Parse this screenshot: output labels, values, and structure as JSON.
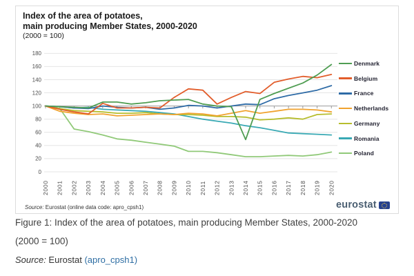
{
  "card": {
    "title_line1": "Index of the area of potatoes,",
    "title_line2": "main producing Member States, 2000-2020",
    "subtitle": "(2000 = 100)",
    "source_label": "Source:",
    "source_text": " Eurostat (online data code: apro_cpsh1)",
    "logo_text": "eurostat"
  },
  "chart_data": {
    "type": "line",
    "x": [
      2000,
      2001,
      2002,
      2003,
      2004,
      2005,
      2006,
      2007,
      2008,
      2009,
      2010,
      2011,
      2012,
      2013,
      2014,
      2015,
      2016,
      2017,
      2018,
      2019,
      2020
    ],
    "series": [
      {
        "name": "Denmark",
        "color": "#4f9d52",
        "values": [
          100,
          99,
          98,
          97,
          106,
          106,
          103,
          105,
          108,
          109,
          110,
          103,
          100,
          99,
          49,
          110,
          119,
          127,
          135,
          147,
          163
        ]
      },
      {
        "name": "Belgium",
        "color": "#e25d2b",
        "values": [
          100,
          95,
          91,
          88,
          104,
          97,
          97,
          98,
          97,
          113,
          126,
          124,
          103,
          113,
          122,
          119,
          136,
          141,
          145,
          143,
          148
        ]
      },
      {
        "name": "France",
        "color": "#2e6ba6",
        "values": [
          100,
          99,
          97,
          96,
          100,
          98,
          97,
          98,
          95,
          97,
          101,
          100,
          97,
          100,
          103,
          102,
          111,
          116,
          120,
          124,
          131
        ]
      },
      {
        "name": "Netherlands",
        "color": "#f0a22e",
        "values": [
          100,
          92,
          89,
          87,
          88,
          85,
          86,
          87,
          88,
          87,
          89,
          88,
          85,
          89,
          93,
          89,
          92,
          95,
          95,
          94,
          91
        ]
      },
      {
        "name": "Germany",
        "color": "#b6bd2d",
        "values": [
          100,
          96,
          93,
          92,
          91,
          89,
          89,
          90,
          88,
          87,
          87,
          86,
          84,
          84,
          83,
          79,
          80,
          82,
          80,
          87,
          88
        ]
      },
      {
        "name": "Romania",
        "color": "#39a9b4",
        "values": [
          100,
          99,
          97,
          98,
          95,
          94,
          93,
          92,
          90,
          88,
          84,
          80,
          77,
          74,
          70,
          67,
          63,
          59,
          58,
          57,
          56
        ]
      },
      {
        "name": "Poland",
        "color": "#90c978",
        "values": [
          100,
          96,
          65,
          61,
          56,
          50,
          48,
          45,
          42,
          39,
          31,
          31,
          29,
          26,
          23,
          23,
          24,
          25,
          24,
          26,
          30
        ]
      }
    ],
    "title": "Index of the area of potatoes, main producing Member States, 2000-2020",
    "subtitle": "(2000 = 100)",
    "xlabel": "",
    "ylabel": "",
    "ylim": [
      0,
      180
    ],
    "yticks": [
      0,
      20,
      40,
      60,
      80,
      100,
      120,
      140,
      160,
      180
    ],
    "baseline": 100,
    "grid": true,
    "legend_position": "right",
    "colors": {
      "grid": "#e4e4e4",
      "baseline_line": "#999999",
      "tick_text": "#4c4c4c"
    }
  },
  "caption": {
    "line1": "Figure 1: Index of the area of potatoes, main producing Member States, 2000-2020",
    "line2": "(2000 = 100)",
    "source_label": "Source:",
    "source_text": " Eurostat ",
    "source_link": "(apro_cpsh1)"
  }
}
